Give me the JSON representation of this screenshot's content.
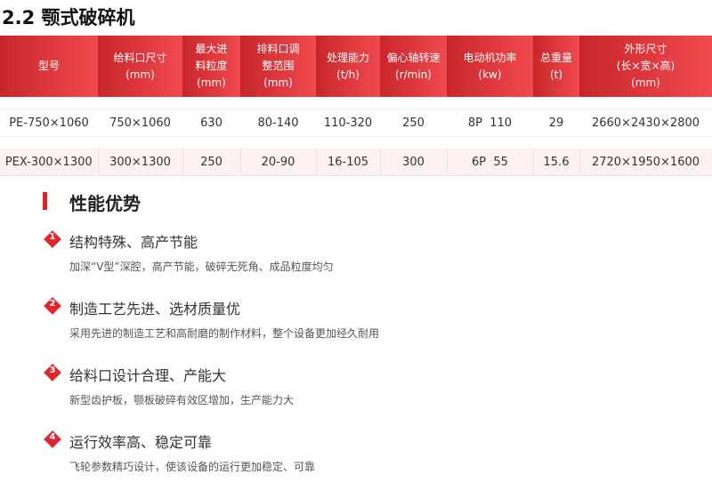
{
  "title": "2.2 颚式破碎机",
  "table": {
    "headers": [
      "型号",
      "给料口尺寸\n(mm)",
      "最大进\n料粒度\n(mm)",
      "排料口调\n整范围\n(mm)",
      "处理能力\n(t/h)",
      "偏心轴转速\n(r/min)",
      "电动机功率\n(kw)",
      "总重量\n(t)",
      "外形尺寸\n(长×宽×高)\n(mm)"
    ],
    "rows": [
      [
        "PE-750×1060",
        "750×1060",
        "630",
        "80-140",
        "110-320",
        "250",
        "8P  110",
        "29",
        "2660×2430×2800"
      ],
      [
        "PEX-300×1300",
        "300×1300",
        "250",
        "20-90",
        "16-105",
        "300",
        "6P  55",
        "15.6",
        "2720×1950×1600"
      ]
    ]
  },
  "section": {
    "heading": "性能优势",
    "items": [
      {
        "num": "1",
        "title": "结构特殊、高产节能",
        "desc": "加深“V型”深腔，高产节能，破碎无死角、成品粒度均匀"
      },
      {
        "num": "2",
        "title": "制造工艺先进、选材质量优",
        "desc": "采用先进的制造工艺和高耐磨的制作材料，整个设备更加经久耐用"
      },
      {
        "num": "3",
        "title": "给料口设计合理、产能大",
        "desc": "新型齿护板，颚板破碎有效区增加，生产能力大"
      },
      {
        "num": "4",
        "title": "运行效率高、稳定可靠",
        "desc": "飞轮参数精巧设计，使该设备的运行更加稳定、可靠"
      }
    ]
  },
  "colors": {
    "accent": "#d9262c",
    "header_start": "#c8262c",
    "header_end": "#f04a4e"
  }
}
